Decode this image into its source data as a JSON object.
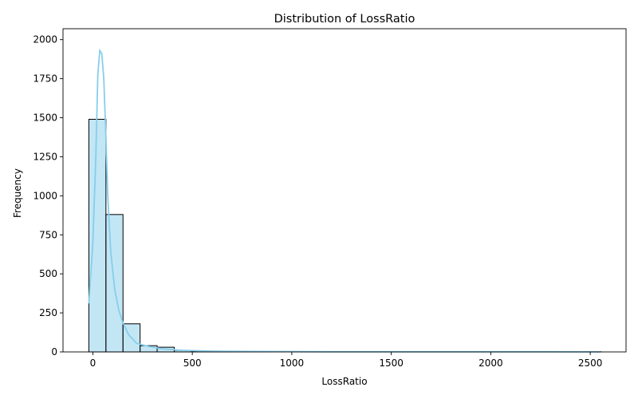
{
  "chart_data": {
    "type": "bar",
    "subtype": "histogram_with_kde",
    "title": "Distribution of LossRatio",
    "xlabel": "LossRatio",
    "ylabel": "Frequency",
    "xlim": [
      -150,
      2680
    ],
    "ylim": [
      0,
      2070
    ],
    "xticks": [
      0,
      500,
      1000,
      1500,
      2000,
      2500
    ],
    "yticks": [
      0,
      250,
      500,
      750,
      1000,
      1250,
      1500,
      1750,
      2000
    ],
    "grid": false,
    "colors": {
      "bar_fill": "#87ceeb",
      "bar_edge": "#000000",
      "kde_line": "#87ceeb"
    },
    "bin_edges_start": -20,
    "bin_width": 85.8,
    "values": [
      1490,
      880,
      180,
      40,
      30,
      10,
      5,
      3,
      2,
      2,
      1,
      1,
      1,
      1,
      1,
      0,
      0,
      0,
      0,
      1,
      0,
      0,
      0,
      0,
      0,
      0,
      0,
      0,
      0,
      1
    ],
    "kde": {
      "x": [
        -20,
        0,
        15,
        25,
        35,
        45,
        55,
        65,
        75,
        90,
        110,
        130,
        150,
        180,
        220,
        280,
        350,
        450,
        600,
        800,
        1200,
        1600,
        2000,
        2300,
        2550
      ],
      "y": [
        310,
        700,
        1250,
        1780,
        1930,
        1910,
        1750,
        1400,
        1000,
        640,
        400,
        270,
        190,
        110,
        55,
        35,
        20,
        10,
        5,
        3,
        1,
        1,
        1,
        1,
        0
      ]
    }
  }
}
